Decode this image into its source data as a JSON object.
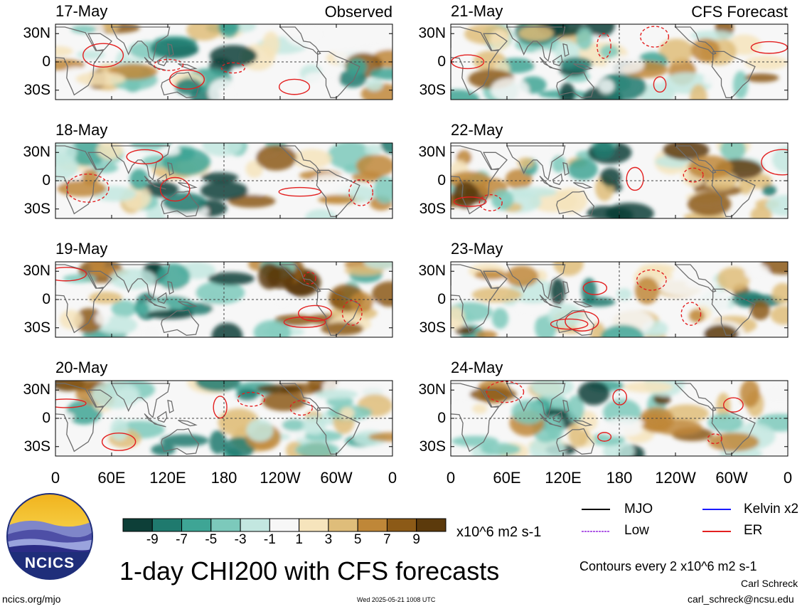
{
  "panels": [
    {
      "date": "17-May",
      "label": "Observed",
      "column": "left",
      "row": 0
    },
    {
      "date": "18-May",
      "label": "",
      "column": "left",
      "row": 1
    },
    {
      "date": "19-May",
      "label": "",
      "column": "left",
      "row": 2
    },
    {
      "date": "20-May",
      "label": "",
      "column": "left",
      "row": 3
    },
    {
      "date": "21-May",
      "label": "CFS Forecast",
      "column": "right",
      "row": 0
    },
    {
      "date": "22-May",
      "label": "",
      "column": "right",
      "row": 1
    },
    {
      "date": "23-May",
      "label": "",
      "column": "right",
      "row": 2
    },
    {
      "date": "24-May",
      "label": "",
      "column": "right",
      "row": 3
    }
  ],
  "lat_labels": [
    "30N",
    "0",
    "30S"
  ],
  "lon_labels": [
    "0",
    "60E",
    "120E",
    "180",
    "120W",
    "60W",
    "0"
  ],
  "colorbar": {
    "ticks": [
      "-9",
      "-7",
      "-5",
      "-3",
      "-1",
      "1",
      "3",
      "5",
      "7",
      "9"
    ],
    "units": "x10^6 m2 s-1",
    "colors": [
      "#0d3f38",
      "#1f7a6e",
      "#3ea595",
      "#7cc9bb",
      "#c3e7e0",
      "#f7f7f7",
      "#f6e4bc",
      "#dfbd7a",
      "#bf8738",
      "#8c5a17",
      "#5c3a0c"
    ]
  },
  "legend": {
    "items": [
      {
        "label": "MJO",
        "color": "#000000"
      },
      {
        "label": "Kelvin x2",
        "color": "#1a1aff"
      },
      {
        "label": "Low",
        "color": "#b05ce6"
      },
      {
        "label": "ER",
        "color": "#e32020"
      }
    ],
    "contour_note": "Contours every 2 x10^6 m2 s-1"
  },
  "title": "1-day CHI200 with CFS forecasts",
  "logo_text": "NCICS",
  "footer": {
    "url": "ncics.org/mjo",
    "timestamp": "Wed 2025-05-21 1008 UTC",
    "author": "Carl Schreck",
    "email": "carl_schreck@ncsu.edu"
  }
}
